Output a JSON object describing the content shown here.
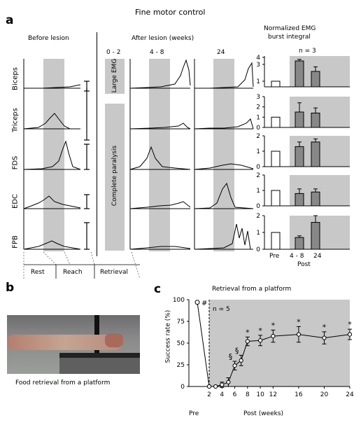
{
  "figure": {
    "title": "Fine motor control",
    "panel_a": "a",
    "panel_b": "b",
    "panel_c": "c"
  },
  "panel_a": {
    "before_lesion": "Before lesion",
    "after_lesion": "After lesion (weeks)",
    "week_labels": [
      "0 - 2",
      "4 - 8",
      "24"
    ],
    "muscles": [
      "Biceps",
      "Triceps",
      "FDS",
      "EDC",
      "FPB"
    ],
    "large_emg": "Large EMG",
    "complete_paralysis": "Complete paralysis",
    "phases": [
      "Rest",
      "Reach",
      "Retrieval"
    ],
    "emg_header_1": "Normalized EMG",
    "emg_header_2": "burst integral",
    "n_label": "n = 3",
    "xaxis": [
      "Pre",
      "4 - 8",
      "24"
    ],
    "xaxis_post": "Post",
    "yticks": [
      [
        "4",
        "3",
        "1"
      ],
      [
        "3",
        "2",
        "1",
        "0"
      ],
      [
        "2",
        "1",
        "0"
      ],
      [
        "2",
        "1",
        "0"
      ],
      [
        "2",
        "1",
        "0"
      ]
    ]
  },
  "panel_b": {
    "caption": "Food retrieval from a platform"
  },
  "chart_data": {
    "type": "line",
    "title": "Retrieval from a platform",
    "ylabel": "Success rate (%)",
    "xlabel": "Post (weeks)",
    "pre_label": "Pre",
    "n_label": "n = 5",
    "hash_mark": "#",
    "ylim": [
      0,
      100
    ],
    "yticks": [
      0,
      25,
      50,
      75,
      100
    ],
    "xticks": [
      2,
      4,
      6,
      8,
      10,
      12,
      16,
      20,
      24
    ],
    "pre_value": 97,
    "x": [
      2,
      3,
      4,
      5,
      6,
      7,
      8,
      10,
      12,
      16,
      20,
      24
    ],
    "values": [
      0,
      0,
      2,
      5,
      24,
      30,
      52,
      53,
      58,
      60,
      56,
      60
    ],
    "errors": [
      0,
      0,
      3,
      5,
      5,
      6,
      5,
      6,
      7,
      9,
      7,
      6
    ],
    "markers": [
      "",
      "",
      "",
      "",
      "§",
      "§",
      "*",
      "*",
      "*",
      "*",
      "*",
      "*"
    ]
  },
  "bar_data": [
    {
      "muscle": "Biceps",
      "ylim": [
        0,
        4
      ],
      "values": [
        1.0,
        3.5,
        2.2
      ],
      "errors": [
        0,
        0.2,
        0.6
      ]
    },
    {
      "muscle": "Triceps",
      "ylim": [
        0,
        3
      ],
      "values": [
        1.0,
        1.5,
        1.4
      ],
      "errors": [
        0,
        0.9,
        0.5
      ]
    },
    {
      "muscle": "FDS",
      "ylim": [
        0,
        2
      ],
      "values": [
        1.0,
        1.3,
        1.6
      ],
      "errors": [
        0,
        0.3,
        0.2
      ]
    },
    {
      "muscle": "EDC",
      "ylim": [
        0,
        2
      ],
      "values": [
        1.0,
        0.8,
        0.9
      ],
      "errors": [
        0,
        0.3,
        0.2
      ]
    },
    {
      "muscle": "FPB",
      "ylim": [
        0,
        2
      ],
      "values": [
        1.0,
        0.7,
        1.6
      ],
      "errors": [
        0,
        0.1,
        0.4
      ]
    }
  ]
}
